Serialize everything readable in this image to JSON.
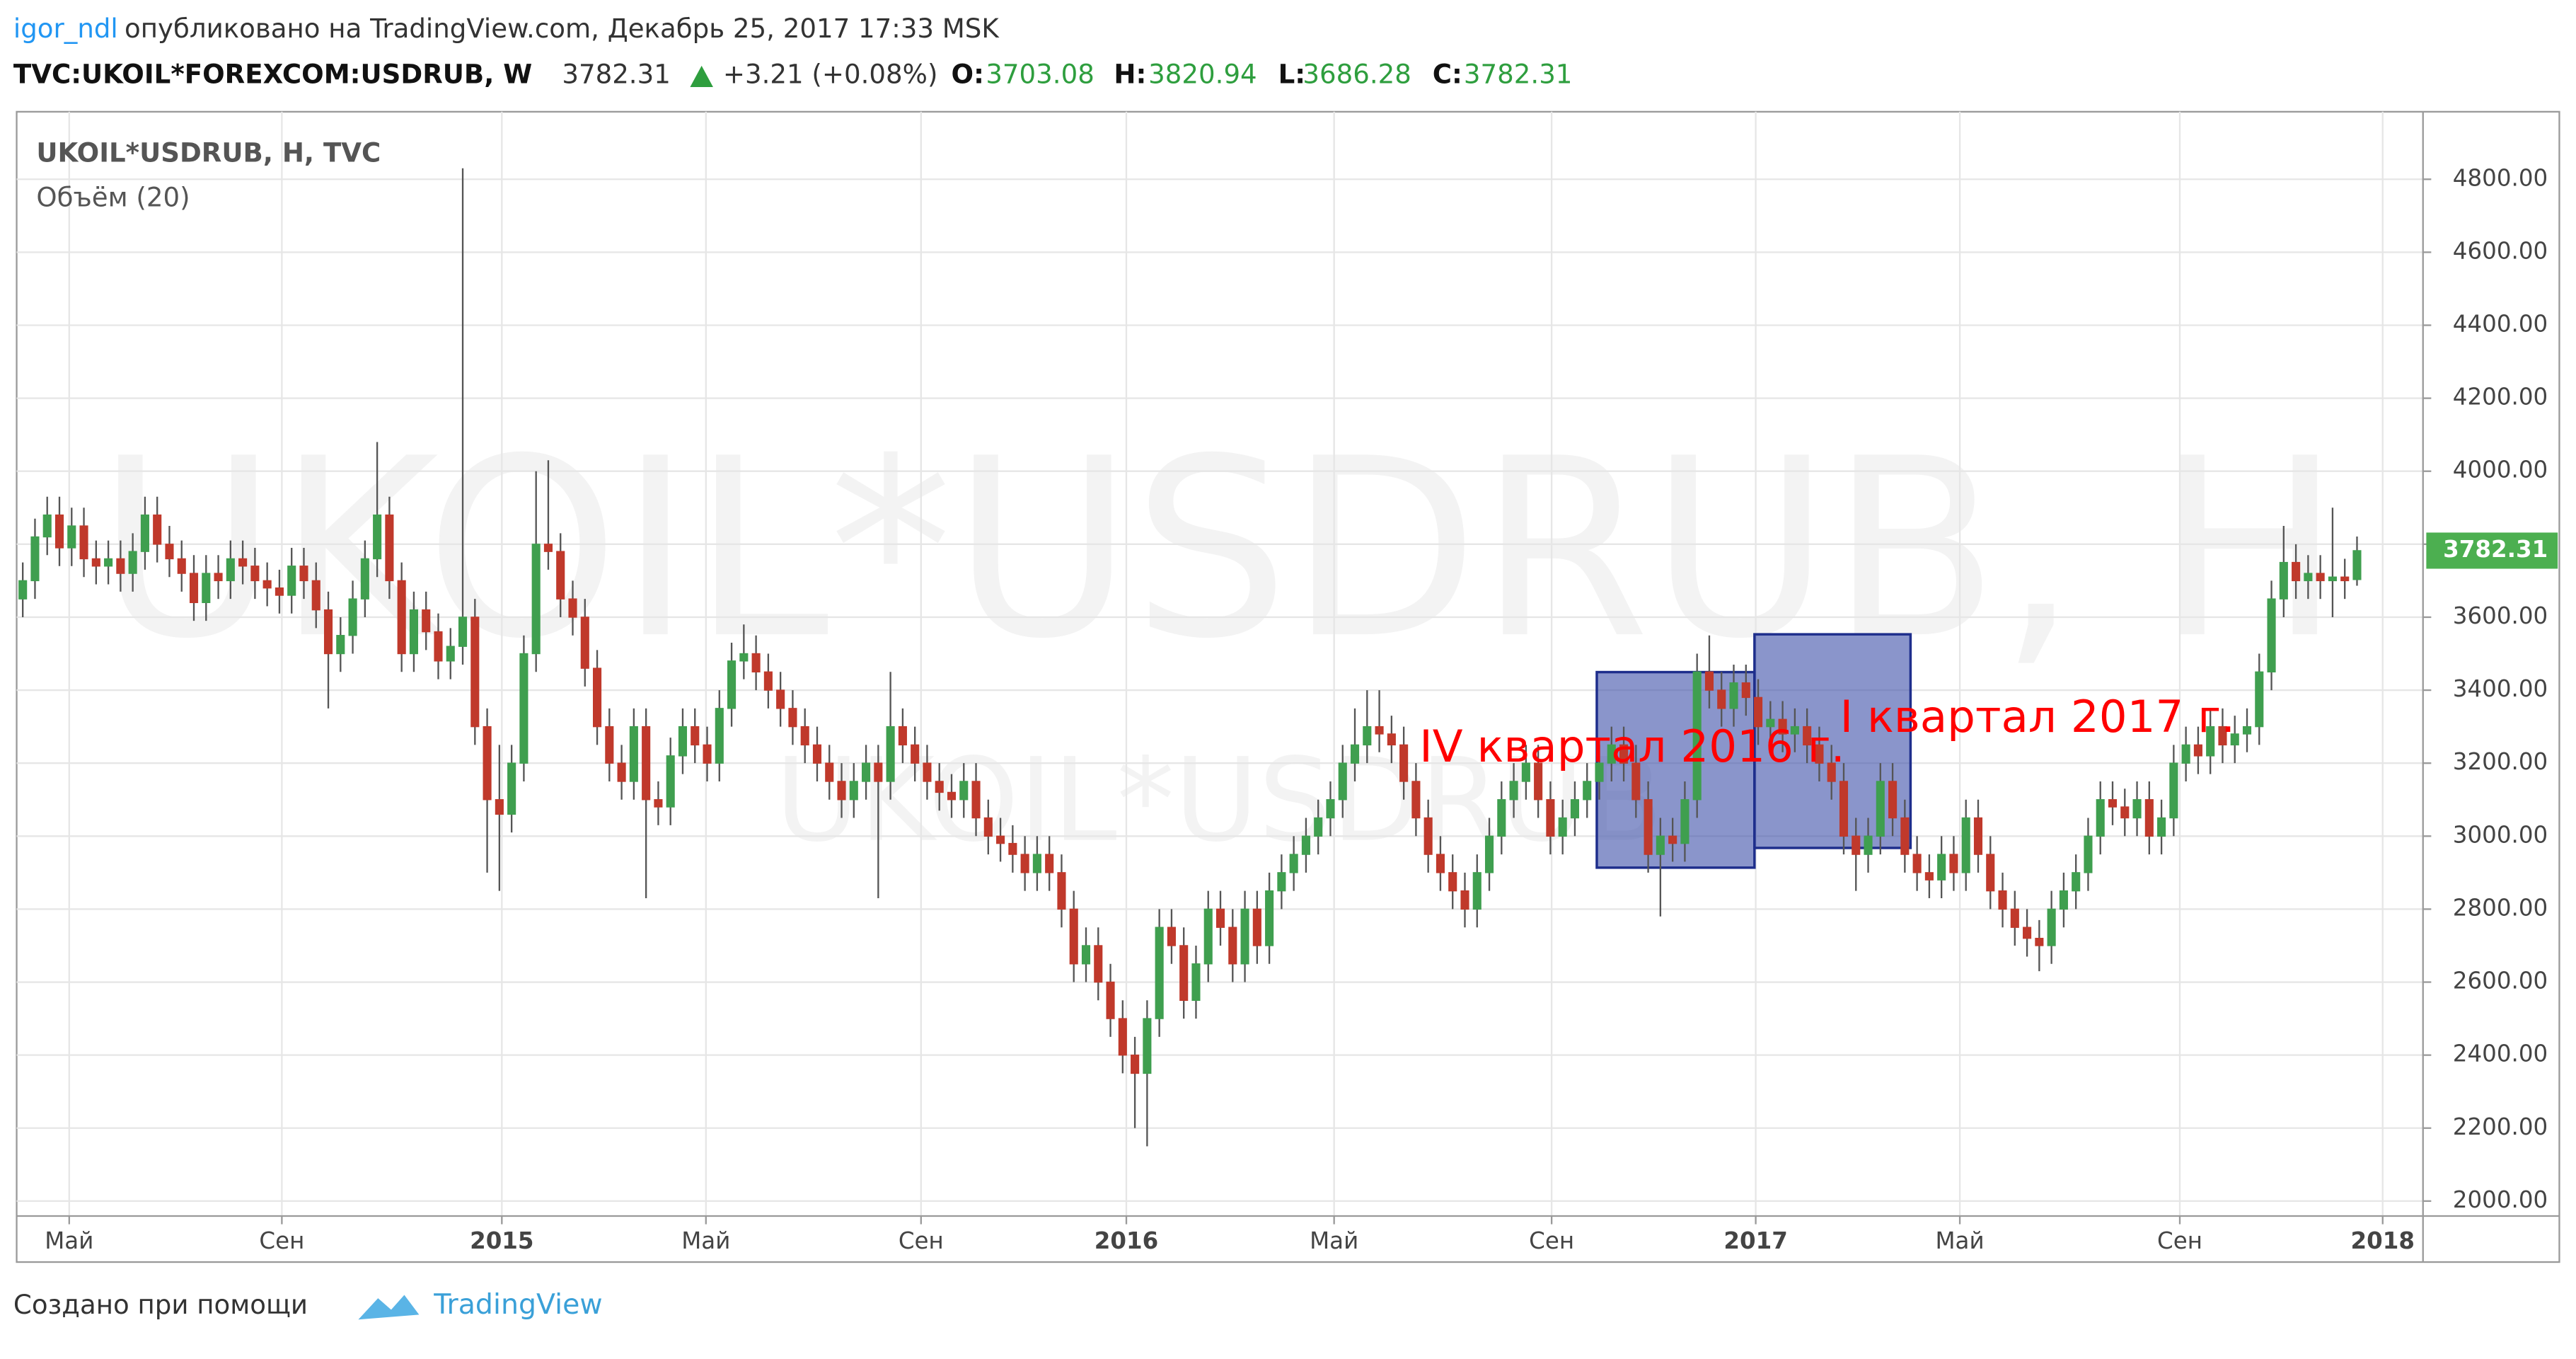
{
  "header": {
    "user": "igor_ndl",
    "published": "опубликовано на TradingView.com, Декабрь 25, 2017 17:33 MSK",
    "symbol": "TVC:UKOIL*FOREXCOM:USDRUB, W",
    "change": "+3.21 (+0.08%)",
    "open_label": "O:",
    "high_label": "H:",
    "low_label": "L:",
    "close_label": "C:"
  },
  "footer": {
    "created": "Создано при помощи",
    "brand": "TradingView"
  },
  "chart_data": {
    "type": "candlestick",
    "title": "UKOIL*USDRUB, H, TVC",
    "indicator": "Объём (20)",
    "watermark": "UKOIL*USDRUB, H",
    "watermark_small": "UKOIL*USDRUB",
    "annotations": [
      "IV квартал 2016 г.",
      "I квартал 2017 г."
    ],
    "up_color": "#3f9f4f",
    "down_color": "#c0392b",
    "wick_color": "#555555",
    "last_price_color": "#4caf50",
    "grid": true,
    "xlim": [
      -0.5,
      196.4
    ],
    "ylim": [
      1959,
      4985
    ],
    "xticks": [
      {
        "value": 3.8,
        "label": "Май"
      },
      {
        "value": 21.2,
        "label": "Сен"
      },
      {
        "value": 39.2,
        "label": "2015"
      },
      {
        "value": 55.9,
        "label": "Май"
      },
      {
        "value": 73.5,
        "label": "Сен"
      },
      {
        "value": 90.3,
        "label": "2016"
      },
      {
        "value": 107.3,
        "label": "Май"
      },
      {
        "value": 125.1,
        "label": "Сен"
      },
      {
        "value": 141.8,
        "label": "2017"
      },
      {
        "value": 158.5,
        "label": "Май"
      },
      {
        "value": 176.5,
        "label": "Сен"
      },
      {
        "value": 193.1,
        "label": "2018"
      }
    ],
    "yticks": [
      {
        "value": 2000,
        "label": "2000.00"
      },
      {
        "value": 2200,
        "label": "2200.00"
      },
      {
        "value": 2400,
        "label": "2400.00"
      },
      {
        "value": 2600,
        "label": "2600.00"
      },
      {
        "value": 2800,
        "label": "2800.00"
      },
      {
        "value": 3000,
        "label": "3000.00"
      },
      {
        "value": 3200,
        "label": "3200.00"
      },
      {
        "value": 3400,
        "label": "3400.00"
      },
      {
        "value": 3600,
        "label": "3600.00"
      },
      {
        "value": 3800,
        "label": "3800.00"
      },
      {
        "value": 4000,
        "label": "4000.00"
      },
      {
        "value": 4200,
        "label": "4200.00"
      },
      {
        "value": 4400,
        "label": "4400.00"
      },
      {
        "value": 4600,
        "label": "4600.00"
      },
      {
        "value": 4800,
        "label": "4800.00"
      }
    ],
    "x": [
      0,
      1,
      2,
      3,
      4,
      5,
      6,
      7,
      8,
      9,
      10,
      11,
      12,
      13,
      14,
      15,
      16,
      17,
      18,
      19,
      20,
      21,
      22,
      23,
      24,
      25,
      26,
      27,
      28,
      29,
      30,
      31,
      32,
      33,
      34,
      35,
      36,
      37,
      38,
      39,
      40,
      41,
      42,
      43,
      44,
      45,
      46,
      47,
      48,
      49,
      50,
      51,
      52,
      53,
      54,
      55,
      56,
      57,
      58,
      59,
      60,
      61,
      62,
      63,
      64,
      65,
      66,
      67,
      68,
      69,
      70,
      71,
      72,
      73,
      74,
      75,
      76,
      77,
      78,
      79,
      80,
      81,
      82,
      83,
      84,
      85,
      86,
      87,
      88,
      89,
      90,
      91,
      92,
      93,
      94,
      95,
      96,
      97,
      98,
      99,
      100,
      101,
      102,
      103,
      104,
      105,
      106,
      107,
      108,
      109,
      110,
      111,
      112,
      113,
      114,
      115,
      116,
      117,
      118,
      119,
      120,
      121,
      122,
      123,
      124,
      125,
      126,
      127,
      128,
      129,
      130,
      131,
      132,
      133,
      134,
      135,
      136,
      137,
      138,
      139,
      140,
      141,
      142,
      143,
      144,
      145,
      146,
      147,
      148,
      149,
      150,
      151,
      152,
      153,
      154,
      155,
      156,
      157,
      158,
      159,
      160,
      161,
      162,
      163,
      164,
      165,
      166,
      167,
      168,
      169,
      170,
      171,
      172,
      173,
      174,
      175,
      176,
      177,
      178,
      179,
      180,
      181,
      182,
      183,
      184,
      185,
      186,
      187,
      188,
      189,
      190,
      191
    ],
    "open": [
      3650,
      3700,
      3820,
      3880,
      3790,
      3850,
      3760,
      3740,
      3760,
      3720,
      3780,
      3880,
      3800,
      3760,
      3720,
      3640,
      3720,
      3700,
      3760,
      3740,
      3700,
      3680,
      3660,
      3740,
      3700,
      3620,
      3500,
      3550,
      3650,
      3760,
      3880,
      3700,
      3500,
      3620,
      3560,
      3480,
      3520,
      3600,
      3300,
      3100,
      3060,
      3200,
      3500,
      3800,
      3780,
      3650,
      3600,
      3460,
      3300,
      3200,
      3150,
      3300,
      3100,
      3080,
      3220,
      3300,
      3250,
      3200,
      3350,
      3480,
      3500,
      3450,
      3400,
      3350,
      3300,
      3250,
      3200,
      3150,
      3100,
      3150,
      3200,
      3150,
      3300,
      3250,
      3200,
      3150,
      3120,
      3100,
      3150,
      3050,
      3000,
      2980,
      2950,
      2900,
      2950,
      2900,
      2800,
      2650,
      2700,
      2600,
      2500,
      2400,
      2350,
      2500,
      2750,
      2700,
      2550,
      2650,
      2800,
      2750,
      2650,
      2800,
      2700,
      2850,
      2900,
      2950,
      3000,
      3050,
      3100,
      3200,
      3250,
      3300,
      3280,
      3250,
      3150,
      3050,
      2950,
      2900,
      2850,
      2800,
      2900,
      3000,
      3100,
      3150,
      3200,
      3100,
      3000,
      3050,
      3100,
      3150,
      3200,
      3250,
      3200,
      3100,
      2950,
      3000,
      2980,
      3100,
      3450,
      3400,
      3350,
      3420,
      3380,
      3300,
      3320,
      3280,
      3300,
      3250,
      3200,
      3150,
      3000,
      2950,
      3000,
      3150,
      3050,
      2950,
      2900,
      2880,
      2950,
      2900,
      3050,
      2950,
      2850,
      2800,
      2750,
      2720,
      2700,
      2800,
      2850,
      2900,
      3000,
      3100,
      3080,
      3050,
      3100,
      3000,
      3050,
      3200,
      3250,
      3220,
      3300,
      3250,
      3280,
      3300,
      3450,
      3650,
      3750,
      3700,
      3720,
      3700,
      3710,
      3703.08
    ],
    "high": [
      3750,
      3870,
      3930,
      3930,
      3900,
      3900,
      3810,
      3810,
      3810,
      3830,
      3930,
      3930,
      3850,
      3810,
      3770,
      3770,
      3770,
      3810,
      3810,
      3790,
      3750,
      3730,
      3790,
      3790,
      3750,
      3670,
      3600,
      3700,
      3810,
      4080,
      3930,
      3750,
      3670,
      3670,
      3610,
      3570,
      4830,
      3650,
      3350,
      3250,
      3250,
      3550,
      4000,
      4030,
      3830,
      3700,
      3650,
      3510,
      3350,
      3250,
      3350,
      3350,
      3150,
      3270,
      3350,
      3350,
      3300,
      3400,
      3530,
      3580,
      3550,
      3500,
      3450,
      3400,
      3350,
      3300,
      3250,
      3200,
      3200,
      3250,
      3250,
      3450,
      3350,
      3300,
      3250,
      3200,
      3170,
      3200,
      3200,
      3100,
      3050,
      3030,
      3000,
      3000,
      3000,
      2950,
      2850,
      2750,
      2750,
      2650,
      2550,
      2450,
      2550,
      2800,
      2800,
      2750,
      2700,
      2850,
      2850,
      2800,
      2850,
      2850,
      2900,
      2950,
      3000,
      3050,
      3100,
      3150,
      3250,
      3350,
      3400,
      3400,
      3330,
      3300,
      3200,
      3100,
      3000,
      2950,
      2900,
      2950,
      3050,
      3150,
      3200,
      3250,
      3250,
      3150,
      3100,
      3150,
      3200,
      3250,
      3300,
      3300,
      3250,
      3150,
      3050,
      3050,
      3150,
      3500,
      3550,
      3450,
      3470,
      3470,
      3430,
      3370,
      3370,
      3350,
      3350,
      3300,
      3250,
      3200,
      3050,
      3050,
      3200,
      3200,
      3100,
      3000,
      2950,
      3000,
      3000,
      3100,
      3100,
      3000,
      2900,
      2850,
      2800,
      2770,
      2850,
      2900,
      2950,
      3050,
      3150,
      3150,
      3130,
      3150,
      3150,
      3100,
      3250,
      3300,
      3300,
      3350,
      3350,
      3330,
      3350,
      3500,
      3700,
      3850,
      3800,
      3770,
      3770,
      3900,
      3760,
      3820.94
    ],
    "low": [
      3600,
      3650,
      3770,
      3740,
      3740,
      3710,
      3690,
      3690,
      3670,
      3670,
      3730,
      3750,
      3710,
      3670,
      3590,
      3590,
      3650,
      3650,
      3690,
      3650,
      3630,
      3610,
      3610,
      3650,
      3570,
      3350,
      3450,
      3500,
      3600,
      3710,
      3650,
      3450,
      3450,
      3510,
      3430,
      3430,
      3470,
      3250,
      2900,
      2850,
      3010,
      3150,
      3450,
      3730,
      3600,
      3550,
      3410,
      3250,
      3150,
      3100,
      3100,
      2830,
      3030,
      3030,
      3170,
      3200,
      3150,
      3150,
      3300,
      3430,
      3400,
      3350,
      3300,
      3250,
      3200,
      3150,
      3100,
      3050,
      3050,
      3100,
      2830,
      3100,
      3200,
      3150,
      3100,
      3070,
      3050,
      3050,
      3000,
      2950,
      2930,
      2900,
      2850,
      2850,
      2850,
      2750,
      2600,
      2600,
      2550,
      2450,
      2350,
      2200,
      2150,
      2450,
      2650,
      2500,
      2500,
      2600,
      2700,
      2600,
      2600,
      2650,
      2650,
      2800,
      2850,
      2900,
      2950,
      3000,
      3050,
      3150,
      3200,
      3230,
      3200,
      3100,
      3000,
      2900,
      2850,
      2800,
      2750,
      2750,
      2850,
      2950,
      3050,
      3100,
      3050,
      2950,
      2950,
      3000,
      3050,
      3100,
      3150,
      3150,
      3050,
      2900,
      2780,
      2930,
      2930,
      3050,
      3350,
      3300,
      3300,
      3330,
      3250,
      3250,
      3230,
      3230,
      3200,
      3150,
      3100,
      2950,
      2850,
      2900,
      2950,
      3000,
      2900,
      2850,
      2830,
      2830,
      2850,
      2850,
      2900,
      2800,
      2750,
      2700,
      2670,
      2630,
      2650,
      2750,
      2800,
      2850,
      2950,
      3030,
      3000,
      3000,
      2950,
      2950,
      3000,
      3150,
      3170,
      3170,
      3200,
      3200,
      3230,
      3250,
      3400,
      3600,
      3650,
      3650,
      3650,
      3600,
      3650,
      3686.28
    ],
    "close": [
      3700,
      3820,
      3880,
      3790,
      3850,
      3760,
      3740,
      3760,
      3720,
      3780,
      3880,
      3800,
      3760,
      3720,
      3640,
      3720,
      3700,
      3760,
      3740,
      3700,
      3680,
      3660,
      3740,
      3700,
      3620,
      3500,
      3550,
      3650,
      3760,
      3880,
      3700,
      3500,
      3620,
      3560,
      3480,
      3520,
      3600,
      3300,
      3100,
      3060,
      3200,
      3500,
      3800,
      3780,
      3650,
      3600,
      3460,
      3300,
      3200,
      3150,
      3300,
      3100,
      3080,
      3220,
      3300,
      3250,
      3200,
      3350,
      3480,
      3500,
      3450,
      3400,
      3350,
      3300,
      3250,
      3200,
      3150,
      3100,
      3150,
      3200,
      3150,
      3300,
      3250,
      3200,
      3150,
      3120,
      3100,
      3150,
      3050,
      3000,
      2980,
      2950,
      2900,
      2950,
      2900,
      2800,
      2650,
      2700,
      2600,
      2500,
      2400,
      2350,
      2500,
      2750,
      2700,
      2550,
      2650,
      2800,
      2750,
      2650,
      2800,
      2700,
      2850,
      2900,
      2950,
      3000,
      3050,
      3100,
      3200,
      3250,
      3300,
      3280,
      3250,
      3150,
      3050,
      2950,
      2900,
      2850,
      2800,
      2900,
      3000,
      3100,
      3150,
      3200,
      3100,
      3000,
      3050,
      3100,
      3150,
      3200,
      3250,
      3200,
      3100,
      2950,
      3000,
      2980,
      3100,
      3450,
      3400,
      3350,
      3420,
      3380,
      3300,
      3320,
      3280,
      3300,
      3250,
      3200,
      3150,
      3000,
      2950,
      3000,
      3150,
      3050,
      2950,
      2900,
      2880,
      2950,
      2900,
      3050,
      2950,
      2850,
      2800,
      2750,
      2720,
      2700,
      2800,
      2850,
      2900,
      3000,
      3100,
      3080,
      3050,
      3100,
      3000,
      3050,
      3200,
      3250,
      3220,
      3300,
      3250,
      3280,
      3300,
      3450,
      3650,
      3750,
      3700,
      3720,
      3700,
      3710,
      3700,
      3782.31
    ]
  }
}
